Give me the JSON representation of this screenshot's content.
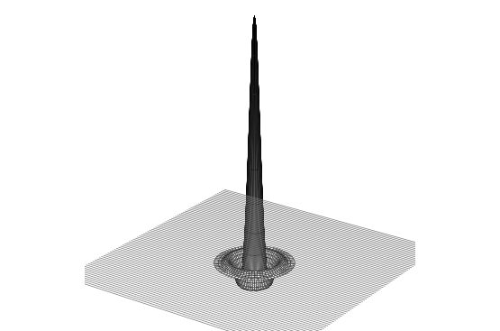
{
  "chart_data": {
    "type": "surface",
    "x": [
      0.0,
      0.01,
      0.02,
      0.03,
      0.04,
      0.05,
      0.06,
      0.07,
      0.08,
      0.09,
      0.1,
      0.11,
      0.12,
      0.13,
      0.14,
      0.15,
      0.16,
      0.17,
      0.18,
      0.19,
      0.2,
      0.21,
      0.22,
      0.23,
      0.24,
      0.25,
      0.27,
      0.3
    ],
    "values": [
      1.0,
      0.96,
      0.85,
      0.7,
      0.55,
      0.4,
      0.26,
      0.14,
      0.05,
      -0.02,
      -0.06,
      -0.085,
      -0.09,
      -0.085,
      -0.07,
      -0.05,
      -0.03,
      -0.012,
      0.0,
      0.01,
      0.015,
      0.015,
      0.012,
      0.008,
      0.004,
      0.0,
      0.0,
      0.0
    ],
    "xlim": [
      -1,
      1
    ],
    "ylim": [
      -1,
      1
    ],
    "zlim": [
      -0.15,
      1.0
    ],
    "tick_labels": false,
    "color": "#000000"
  }
}
